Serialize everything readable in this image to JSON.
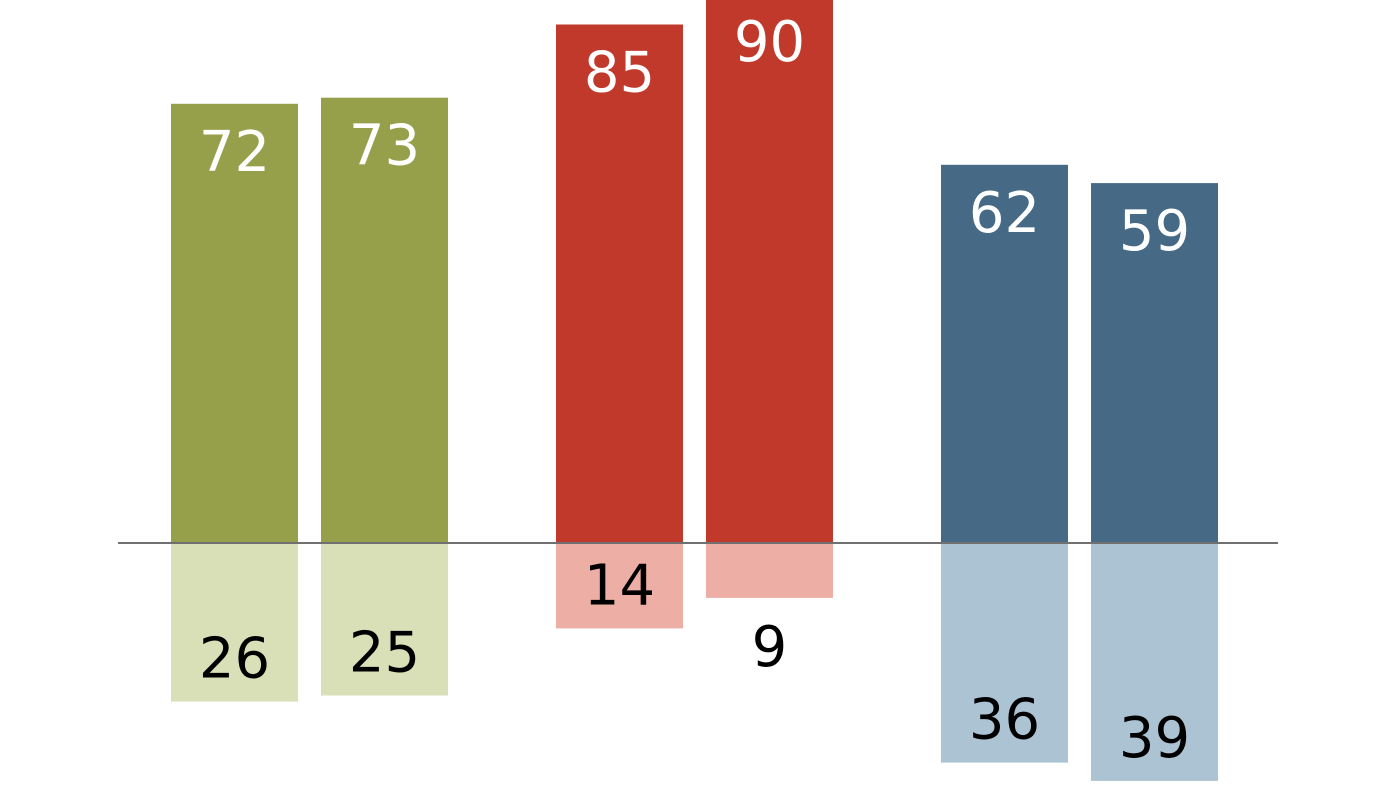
{
  "chart_data": {
    "type": "bar",
    "title": "",
    "xlabel": "",
    "ylabel": "",
    "ylim": [
      -40,
      95
    ],
    "grid": false,
    "legend": "none",
    "groups": [
      {
        "bars": [
          {
            "positive": 72,
            "negative": 26
          },
          {
            "positive": 73,
            "negative": 25
          }
        ],
        "positive_color": "#969f4a",
        "negative_color": "#d9dfb6"
      },
      {
        "bars": [
          {
            "positive": 85,
            "negative": 14
          },
          {
            "positive": 90,
            "negative": 9
          }
        ],
        "positive_color": "#c0392b",
        "negative_color": "#edaea5"
      },
      {
        "bars": [
          {
            "positive": 62,
            "negative": 36
          },
          {
            "positive": 59,
            "negative": 39
          }
        ],
        "positive_color": "#466a85",
        "negative_color": "#acc3d3"
      }
    ],
    "baseline_color": "#707070",
    "positive_label_color": "#ffffff",
    "negative_label_color": "#000000"
  }
}
